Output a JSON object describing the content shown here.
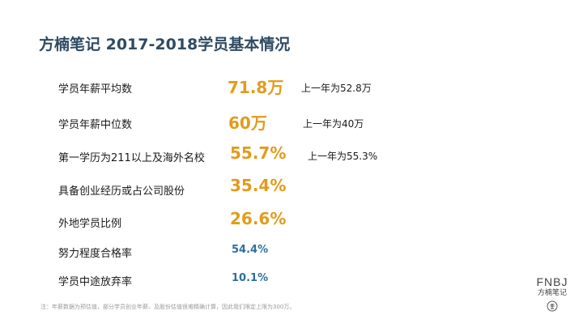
{
  "title": "方楠笔记 2017-2018学员基本情况",
  "stats": [
    {
      "label": "学员年薪平均数",
      "value": "71.8万",
      "prev": "上一年为52.8万"
    },
    {
      "label": "学员年薪中位数",
      "value": "60万",
      "prev": "上一年为40万"
    },
    {
      "label": "第一学历为211以上及海外名校",
      "value": "55.7%",
      "prev": "上一年为55.3%"
    },
    {
      "label": "具备创业经历或占公司股份",
      "value": "35.4%"
    },
    {
      "label": "外地学员比例",
      "value": "26.6%"
    },
    {
      "label": "努力程度合格率",
      "value": "54.4%"
    },
    {
      "label": "学员中途放弃率",
      "value": "10.1%"
    }
  ],
  "note": "注：年薪数据为预估值，部分学员创业年薪、及股份估值很难精确计算，因此我们限定上限为300万。",
  "logo": {
    "brand": "FNBJ",
    "name_cn": "方楠笔记",
    "seal_icon": "seal-icon"
  },
  "colors": {
    "title": "#2f4b63",
    "highlight": "#e39b1b",
    "secondary": "#2e6f9e"
  }
}
